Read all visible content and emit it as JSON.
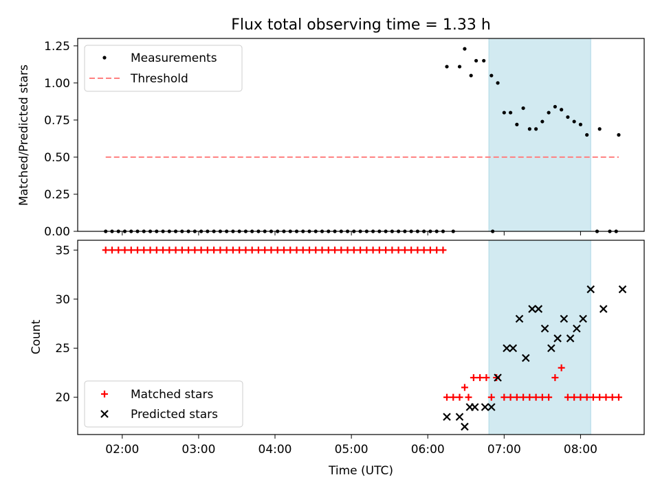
{
  "title": "Flux total observing time = 1.33 h",
  "colors": {
    "measurement": "#000000",
    "threshold": "#ff7f7f",
    "matched": "#ff0000",
    "predicted": "#000000",
    "highlight": "#add8e6"
  },
  "chart_data": [
    {
      "type": "scatter",
      "ylabel": "Matched/Predicted stars",
      "ylim": [
        0,
        1.3
      ],
      "yticks": [
        0.0,
        0.25,
        0.5,
        0.75,
        1.0,
        1.25
      ],
      "ytick_labels": [
        "0.00",
        "0.25",
        "0.50",
        "0.75",
        "1.00",
        "1.25"
      ],
      "legend": {
        "placement": "top-left",
        "entries": [
          "Measurements",
          "Threshold"
        ]
      },
      "highlight_span": [
        "06:48",
        "08:08"
      ],
      "series": [
        {
          "name": "Measurements",
          "marker": "dot",
          "points": [
            [
              "01:47",
              0
            ],
            [
              "01:52",
              0
            ],
            [
              "01:57",
              0
            ],
            [
              "02:02",
              0
            ],
            [
              "02:07",
              0
            ],
            [
              "02:12",
              0
            ],
            [
              "02:17",
              0
            ],
            [
              "02:22",
              0
            ],
            [
              "02:27",
              0
            ],
            [
              "02:32",
              0
            ],
            [
              "02:37",
              0
            ],
            [
              "02:42",
              0
            ],
            [
              "02:47",
              0
            ],
            [
              "02:52",
              0
            ],
            [
              "02:57",
              0
            ],
            [
              "03:02",
              0
            ],
            [
              "03:07",
              0
            ],
            [
              "03:12",
              0
            ],
            [
              "03:17",
              0
            ],
            [
              "03:22",
              0
            ],
            [
              "03:27",
              0
            ],
            [
              "03:32",
              0
            ],
            [
              "03:37",
              0
            ],
            [
              "03:42",
              0
            ],
            [
              "03:47",
              0
            ],
            [
              "03:52",
              0
            ],
            [
              "03:57",
              0
            ],
            [
              "04:02",
              0
            ],
            [
              "04:07",
              0
            ],
            [
              "04:12",
              0
            ],
            [
              "04:17",
              0
            ],
            [
              "04:22",
              0
            ],
            [
              "04:27",
              0
            ],
            [
              "04:32",
              0
            ],
            [
              "04:37",
              0
            ],
            [
              "04:42",
              0
            ],
            [
              "04:47",
              0
            ],
            [
              "04:52",
              0
            ],
            [
              "04:57",
              0
            ],
            [
              "05:02",
              0
            ],
            [
              "05:07",
              0
            ],
            [
              "05:12",
              0
            ],
            [
              "05:17",
              0
            ],
            [
              "05:22",
              0
            ],
            [
              "05:27",
              0
            ],
            [
              "05:32",
              0
            ],
            [
              "05:37",
              0
            ],
            [
              "05:42",
              0
            ],
            [
              "05:47",
              0
            ],
            [
              "05:52",
              0
            ],
            [
              "05:57",
              0
            ],
            [
              "06:02",
              0
            ],
            [
              "06:07",
              0
            ],
            [
              "06:12",
              0
            ],
            [
              "06:20",
              0
            ],
            [
              "06:51",
              0
            ],
            [
              "08:13",
              0
            ],
            [
              "08:23",
              0
            ],
            [
              "08:28",
              0
            ],
            [
              "06:15",
              1.11
            ],
            [
              "06:25",
              1.11
            ],
            [
              "06:29",
              1.23
            ],
            [
              "06:34",
              1.05
            ],
            [
              "06:38",
              1.15
            ],
            [
              "06:44",
              1.15
            ],
            [
              "06:50",
              1.05
            ],
            [
              "06:55",
              1.0
            ],
            [
              "07:00",
              0.8
            ],
            [
              "07:05",
              0.8
            ],
            [
              "07:10",
              0.72
            ],
            [
              "07:15",
              0.83
            ],
            [
              "07:20",
              0.69
            ],
            [
              "07:25",
              0.69
            ],
            [
              "07:30",
              0.74
            ],
            [
              "07:35",
              0.8
            ],
            [
              "07:40",
              0.84
            ],
            [
              "07:45",
              0.82
            ],
            [
              "07:50",
              0.77
            ],
            [
              "07:55",
              0.74
            ],
            [
              "08:00",
              0.72
            ],
            [
              "08:05",
              0.65
            ],
            [
              "08:15",
              0.69
            ],
            [
              "08:30",
              0.65
            ]
          ]
        },
        {
          "name": "Threshold",
          "marker": "dashed-line",
          "points": [
            [
              "01:47",
              0.5
            ],
            [
              "08:30",
              0.5
            ]
          ]
        }
      ]
    },
    {
      "type": "scatter",
      "xlabel": "Time (UTC)",
      "ylabel": "Count",
      "ylim": [
        16.2,
        36.0
      ],
      "yticks": [
        20,
        25,
        30,
        35
      ],
      "ytick_labels": [
        "20",
        "25",
        "30",
        "35"
      ],
      "xlim": [
        "01:25",
        "08:50"
      ],
      "xticks": [
        "02:00",
        "03:00",
        "04:00",
        "05:00",
        "06:00",
        "07:00",
        "08:00"
      ],
      "legend": {
        "placement": "bottom-left",
        "entries": [
          "Matched stars",
          "Predicted stars"
        ]
      },
      "highlight_span": [
        "06:48",
        "08:08"
      ],
      "series": [
        {
          "name": "Matched stars",
          "marker": "plus",
          "points": [
            [
              "01:47",
              35
            ],
            [
              "01:52",
              35
            ],
            [
              "01:57",
              35
            ],
            [
              "02:02",
              35
            ],
            [
              "02:07",
              35
            ],
            [
              "02:12",
              35
            ],
            [
              "02:17",
              35
            ],
            [
              "02:22",
              35
            ],
            [
              "02:27",
              35
            ],
            [
              "02:32",
              35
            ],
            [
              "02:37",
              35
            ],
            [
              "02:42",
              35
            ],
            [
              "02:47",
              35
            ],
            [
              "02:52",
              35
            ],
            [
              "02:57",
              35
            ],
            [
              "03:02",
              35
            ],
            [
              "03:07",
              35
            ],
            [
              "03:12",
              35
            ],
            [
              "03:17",
              35
            ],
            [
              "03:22",
              35
            ],
            [
              "03:27",
              35
            ],
            [
              "03:32",
              35
            ],
            [
              "03:37",
              35
            ],
            [
              "03:42",
              35
            ],
            [
              "03:47",
              35
            ],
            [
              "03:52",
              35
            ],
            [
              "03:57",
              35
            ],
            [
              "04:02",
              35
            ],
            [
              "04:07",
              35
            ],
            [
              "04:12",
              35
            ],
            [
              "04:17",
              35
            ],
            [
              "04:22",
              35
            ],
            [
              "04:27",
              35
            ],
            [
              "04:32",
              35
            ],
            [
              "04:37",
              35
            ],
            [
              "04:42",
              35
            ],
            [
              "04:47",
              35
            ],
            [
              "04:52",
              35
            ],
            [
              "04:57",
              35
            ],
            [
              "05:02",
              35
            ],
            [
              "05:07",
              35
            ],
            [
              "05:12",
              35
            ],
            [
              "05:17",
              35
            ],
            [
              "05:22",
              35
            ],
            [
              "05:27",
              35
            ],
            [
              "05:32",
              35
            ],
            [
              "05:37",
              35
            ],
            [
              "05:42",
              35
            ],
            [
              "05:47",
              35
            ],
            [
              "05:52",
              35
            ],
            [
              "05:57",
              35
            ],
            [
              "06:02",
              35
            ],
            [
              "06:07",
              35
            ],
            [
              "06:12",
              35
            ],
            [
              "06:15",
              20
            ],
            [
              "06:20",
              20
            ],
            [
              "06:25",
              20
            ],
            [
              "06:29",
              21
            ],
            [
              "06:32",
              20
            ],
            [
              "06:36",
              22
            ],
            [
              "06:41",
              22
            ],
            [
              "06:46",
              22
            ],
            [
              "06:50",
              20
            ],
            [
              "06:54",
              22
            ],
            [
              "07:00",
              20
            ],
            [
              "07:05",
              20
            ],
            [
              "07:10",
              20
            ],
            [
              "07:15",
              20
            ],
            [
              "07:20",
              20
            ],
            [
              "07:25",
              20
            ],
            [
              "07:30",
              20
            ],
            [
              "07:35",
              20
            ],
            [
              "07:40",
              22
            ],
            [
              "07:45",
              23
            ],
            [
              "07:50",
              20
            ],
            [
              "07:55",
              20
            ],
            [
              "08:00",
              20
            ],
            [
              "08:05",
              20
            ],
            [
              "08:10",
              20
            ],
            [
              "08:15",
              20
            ],
            [
              "08:20",
              20
            ],
            [
              "08:25",
              20
            ],
            [
              "08:30",
              20
            ]
          ]
        },
        {
          "name": "Predicted stars",
          "marker": "x",
          "points": [
            [
              "06:15",
              18
            ],
            [
              "06:25",
              18
            ],
            [
              "06:29",
              17
            ],
            [
              "06:33",
              19
            ],
            [
              "06:37",
              19
            ],
            [
              "06:45",
              19
            ],
            [
              "06:50",
              19
            ],
            [
              "06:55",
              22
            ],
            [
              "07:02",
              25
            ],
            [
              "07:07",
              25
            ],
            [
              "07:12",
              28
            ],
            [
              "07:17",
              24
            ],
            [
              "07:22",
              29
            ],
            [
              "07:27",
              29
            ],
            [
              "07:32",
              27
            ],
            [
              "07:37",
              25
            ],
            [
              "07:42",
              26
            ],
            [
              "07:47",
              28
            ],
            [
              "07:52",
              26
            ],
            [
              "07:57",
              27
            ],
            [
              "08:02",
              28
            ],
            [
              "08:08",
              31
            ],
            [
              "08:18",
              29
            ],
            [
              "08:33",
              31
            ]
          ]
        }
      ]
    }
  ]
}
